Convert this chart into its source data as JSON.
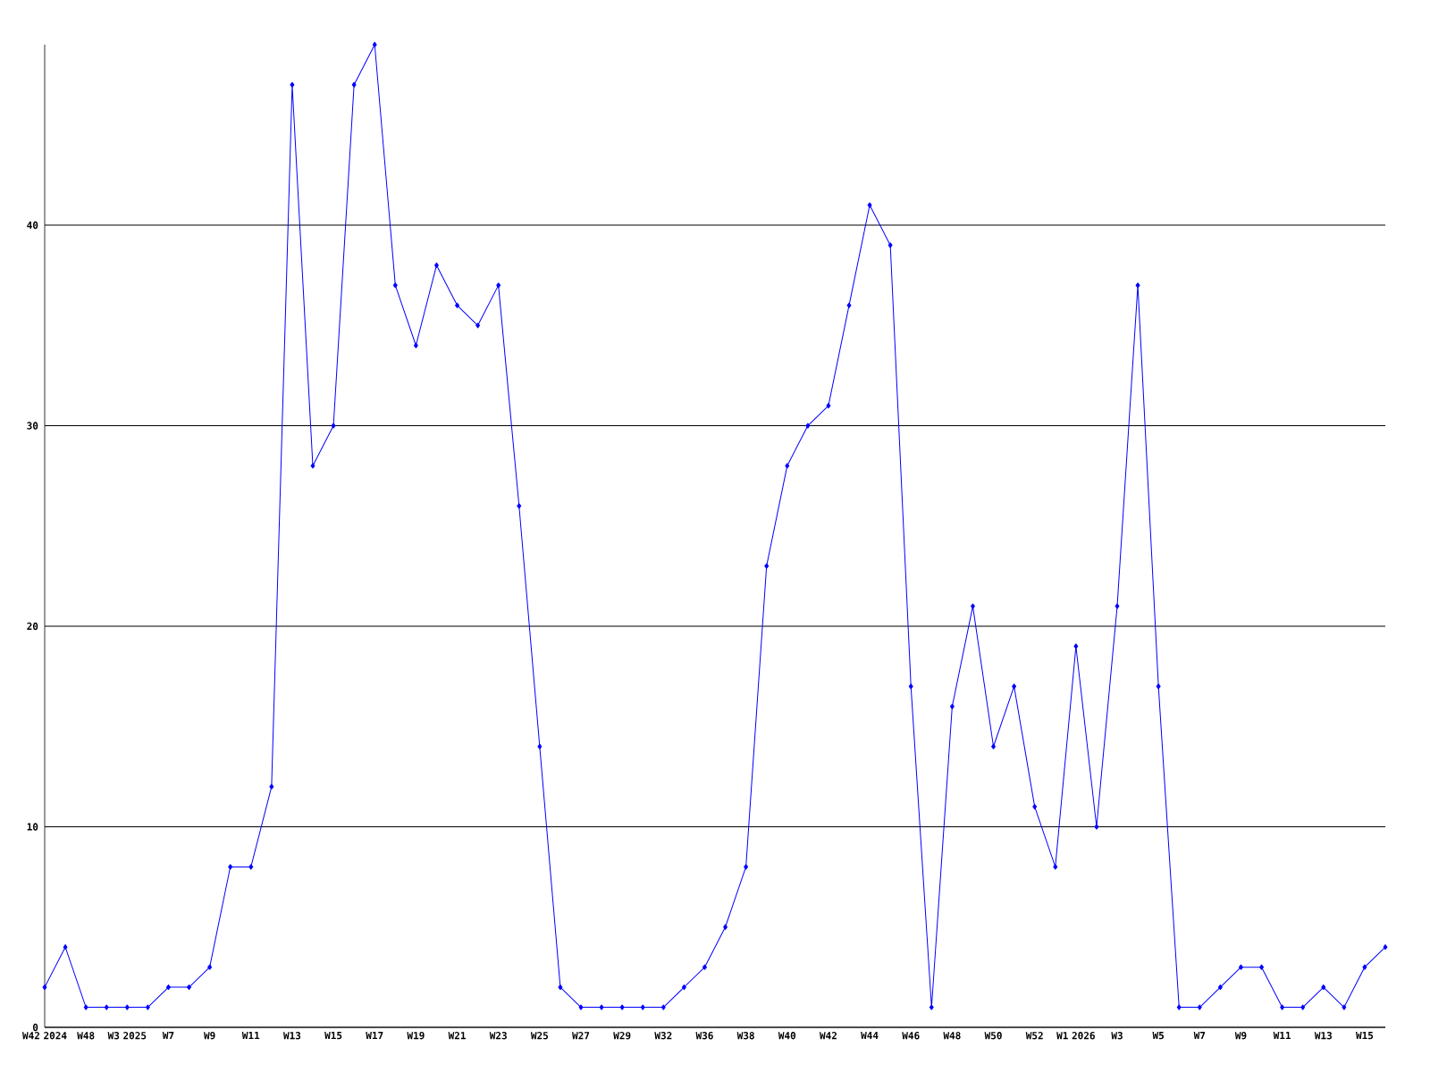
{
  "chart_data": {
    "type": "line",
    "categories": [
      "W42 2024",
      null,
      "W48",
      null,
      "W3 2025",
      null,
      "W7",
      null,
      "W9",
      null,
      "W11",
      null,
      "W13",
      null,
      "W15",
      null,
      "W17",
      null,
      "W19",
      null,
      "W21",
      null,
      "W23",
      null,
      "W25",
      null,
      "W27",
      null,
      "W29",
      null,
      "W32",
      null,
      "W36",
      null,
      "W38",
      null,
      "W40",
      null,
      "W42",
      null,
      "W44",
      null,
      "W46",
      null,
      "W48",
      null,
      "W50",
      null,
      "W52",
      null,
      "W1 2026",
      null,
      "W3",
      null,
      "W5",
      null,
      "W7",
      null,
      "W9",
      null,
      "W11",
      null,
      "W13",
      null,
      "W15",
      null
    ],
    "values": [
      2,
      4,
      1,
      1,
      1,
      1,
      2,
      2,
      3,
      8,
      8,
      12,
      47,
      28,
      30,
      47,
      49,
      37,
      34,
      38,
      36,
      35,
      37,
      26,
      14,
      2,
      1,
      1,
      1,
      1,
      1,
      2,
      3,
      5,
      8,
      23,
      28,
      30,
      31,
      36,
      41,
      39,
      17,
      1,
      16,
      21,
      14,
      17,
      11,
      8,
      19,
      10,
      21,
      37,
      17,
      1,
      1,
      2,
      3,
      3,
      1,
      1,
      2,
      1,
      3,
      4
    ],
    "color": "#0000ff",
    "marker": "diamond",
    "line_style": "solid",
    "ylim": [
      0,
      49
    ],
    "yticks": [
      0,
      10,
      20,
      30,
      40
    ],
    "grid": "y"
  }
}
